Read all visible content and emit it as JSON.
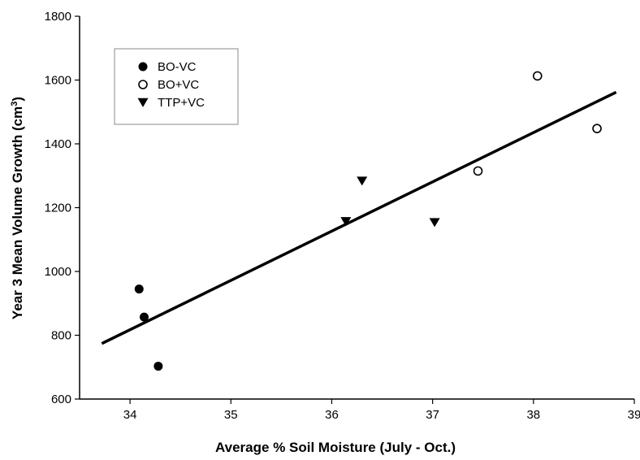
{
  "chart_data": {
    "type": "scatter",
    "title": "",
    "xlabel": "Average % Soil Moisture (July - Oct.)",
    "ylabel_main": "Year 3 Mean Volume Growth (cm",
    "ylabel_sup": "3",
    "ylabel_end": ")",
    "xlim": [
      33.5,
      39
    ],
    "ylim": [
      600,
      1800
    ],
    "xticks": [
      "34",
      "35",
      "36",
      "37",
      "38",
      "39"
    ],
    "yticks": [
      "600",
      "800",
      "1000",
      "1200",
      "1400",
      "1600",
      "1800"
    ],
    "grid": false,
    "legend_position": "top-left",
    "series": [
      {
        "name": "BO-VC",
        "marker": "filled-circle",
        "color": "#000000",
        "points": [
          [
            34.09,
            945
          ],
          [
            34.14,
            857
          ],
          [
            34.28,
            703
          ]
        ]
      },
      {
        "name": "BO+VC",
        "marker": "open-circle",
        "color": "#000000",
        "points": [
          [
            37.45,
            1315
          ],
          [
            38.04,
            1613
          ],
          [
            38.63,
            1448
          ]
        ]
      },
      {
        "name": "TTP+VC",
        "marker": "filled-triangle-down",
        "color": "#000000",
        "points": [
          [
            36.14,
            1157
          ],
          [
            36.3,
            1284
          ],
          [
            37.02,
            1154
          ]
        ]
      }
    ],
    "trendline": {
      "x": [
        33.72,
        38.82
      ],
      "y": [
        774,
        1562
      ]
    }
  }
}
